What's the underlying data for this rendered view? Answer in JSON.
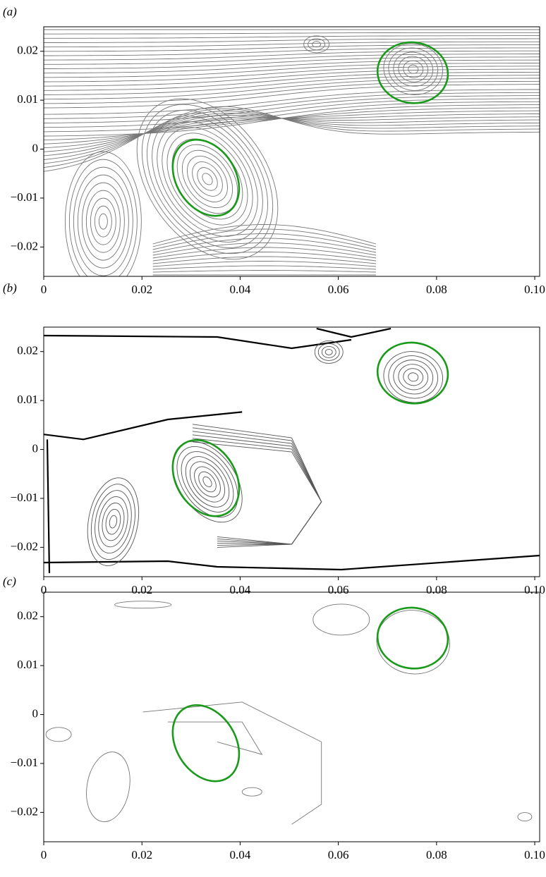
{
  "chart_data": [
    {
      "type": "contour",
      "label": "(a)",
      "xlim": [
        0,
        0.101
      ],
      "ylim": [
        -0.026,
        0.025
      ],
      "xticks": [
        0,
        0.02,
        0.04,
        0.06,
        0.08,
        {
          "value": 0.1,
          "label": "0.10"
        }
      ],
      "yticks": [
        {
          "value": -0.02,
          "label": "−0.02"
        },
        {
          "value": -0.01,
          "label": "−0.01"
        },
        0,
        0.01,
        0.02
      ]
    },
    {
      "type": "contour",
      "label": "(b)",
      "xlim": [
        0,
        0.101
      ],
      "ylim": [
        -0.026,
        0.025
      ],
      "xticks": [
        0,
        0.02,
        0.04,
        0.06,
        0.08,
        {
          "value": 0.1,
          "label": "0.10"
        }
      ],
      "yticks": [
        {
          "value": -0.02,
          "label": "−0.02"
        },
        {
          "value": -0.01,
          "label": "−0.01"
        },
        0,
        0.01,
        0.02
      ]
    },
    {
      "type": "contour",
      "label": "(c)",
      "xlim": [
        0,
        0.101
      ],
      "ylim": [
        -0.026,
        0.025
      ],
      "xticks": [
        0,
        0.02,
        0.04,
        0.06,
        0.08,
        {
          "value": 0.1,
          "label": "0.10"
        }
      ],
      "yticks": [
        {
          "value": -0.02,
          "label": "−0.02"
        },
        {
          "value": -0.01,
          "label": "−0.01"
        },
        0,
        0.01,
        0.02
      ]
    }
  ]
}
